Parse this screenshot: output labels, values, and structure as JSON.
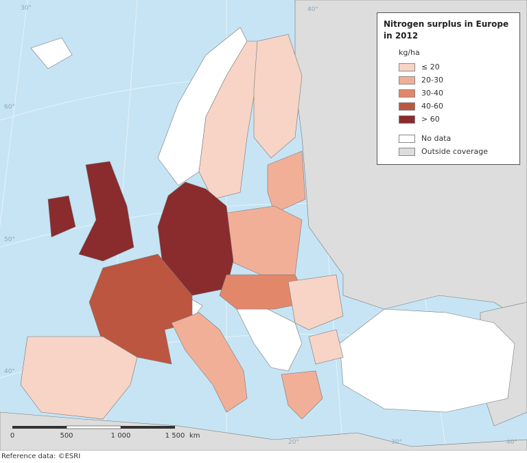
{
  "legend": {
    "title": "Nitrogen surplus in Europe in 2012",
    "unit": "kg/ha",
    "classes": [
      {
        "label": "≤ 20",
        "color": "#f7d4c6"
      },
      {
        "label": "20-30",
        "color": "#f2af98"
      },
      {
        "label": "30-40",
        "color": "#e3876b"
      },
      {
        "label": "40-60",
        "color": "#bd5640"
      },
      {
        "label": "> 60",
        "color": "#8a2b2d"
      }
    ],
    "other": [
      {
        "label": "No data",
        "color": "#ffffff"
      },
      {
        "label": "Outside coverage",
        "color": "#dddddd"
      }
    ]
  },
  "scale_bar": {
    "labels": [
      "0",
      "500",
      "1 000",
      "1 500"
    ],
    "unit": "km"
  },
  "graticule_labels": [
    "30°",
    "40°",
    "60°",
    "50°",
    "40°",
    "20°",
    "30°",
    "40°"
  ],
  "footer": "Reference data: ©ESRI"
}
